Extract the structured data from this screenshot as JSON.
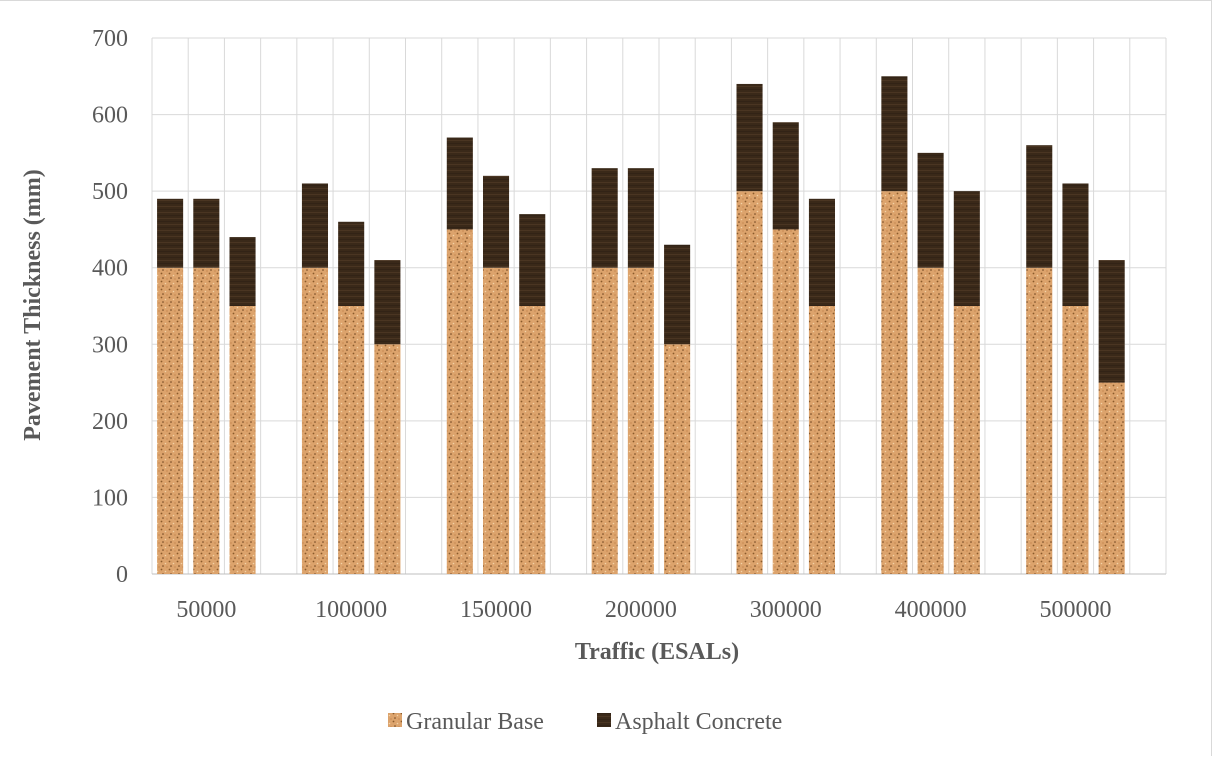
{
  "chart_data": {
    "type": "bar",
    "stacked": true,
    "bars_per_category": 3,
    "categories": [
      "50000",
      "100000",
      "150000",
      "200000",
      "300000",
      "400000",
      "500000"
    ],
    "series": [
      {
        "name": "Granular Base",
        "color": "#d9a06b",
        "values": [
          [
            400,
            400,
            350
          ],
          [
            400,
            350,
            300
          ],
          [
            450,
            400,
            350
          ],
          [
            400,
            400,
            300
          ],
          [
            500,
            450,
            350
          ],
          [
            500,
            400,
            350
          ],
          [
            400,
            350,
            250
          ]
        ]
      },
      {
        "name": "Asphalt Concrete",
        "color": "#3b2a1c",
        "values": [
          [
            90,
            90,
            90
          ],
          [
            110,
            110,
            110
          ],
          [
            120,
            120,
            120
          ],
          [
            130,
            130,
            130
          ],
          [
            140,
            140,
            140
          ],
          [
            150,
            150,
            150
          ],
          [
            160,
            160,
            160
          ]
        ]
      }
    ],
    "xlabel": "Traffic (ESALs)",
    "ylabel": "Pavement Thickness (mm)",
    "ylim": [
      0,
      700
    ],
    "yticks": [
      "0",
      "100",
      "200",
      "300",
      "400",
      "500",
      "600",
      "700"
    ],
    "grid": true,
    "legend_position": "bottom"
  }
}
